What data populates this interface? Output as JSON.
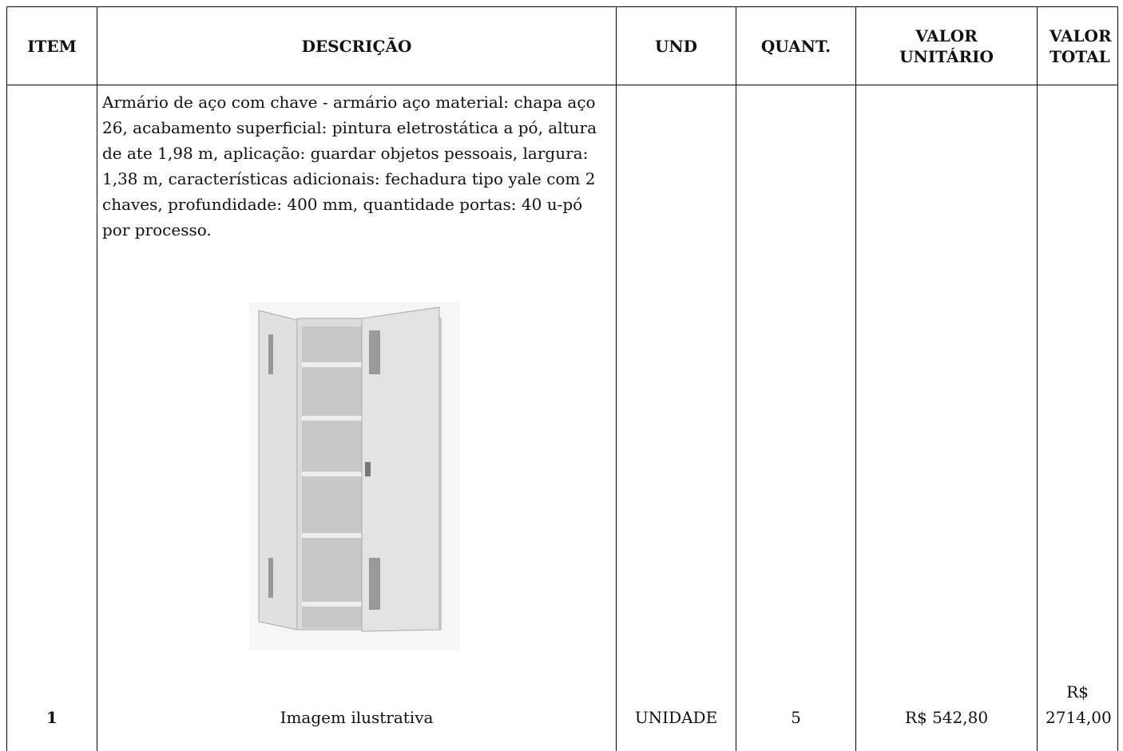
{
  "table": {
    "headers": [
      "ITEM",
      "DESCRIÇÃO",
      "UND",
      "QUANT.",
      "VALOR UNITÁRIO",
      "VALOR TOTAL"
    ],
    "rows": [
      {
        "item": "1",
        "description": "Armário de aço com chave - armário aço material: chapa aço 26, acabamento superficial: pintura eletrostática a pó, altura de ate 1,98 m, aplicação: guardar objetos pessoais, largura: 1,38 m, características adicionais: fechadura tipo yale com 2 chaves, profundidade: 400 mm, quantidade portas: 40 u-pó por processo.",
        "image_caption": "Imagem ilustrativa",
        "unit": "UNIDADE",
        "quantity": "5",
        "unit_value": "R$ 542,80",
        "total_value": "R$ 2714,00"
      }
    ]
  }
}
